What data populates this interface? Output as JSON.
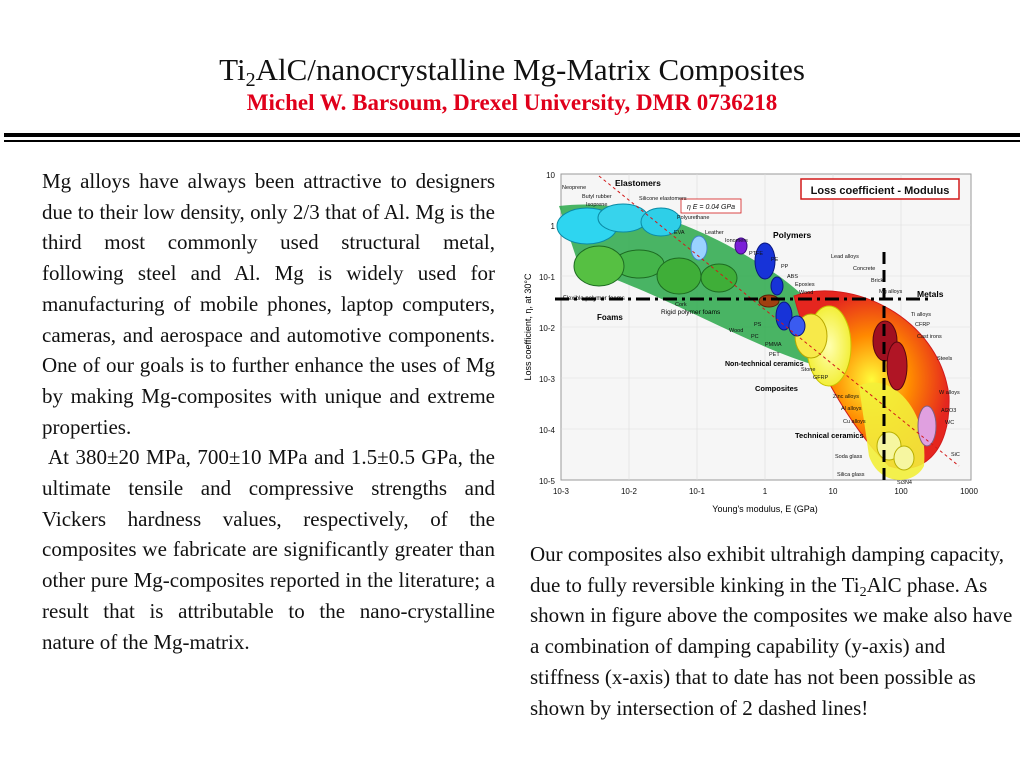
{
  "header": {
    "title_pre": "Ti",
    "title_sub": "2",
    "title_post": "AlC/nanocrystalline Mg-Matrix Composites",
    "subtitle": "Michel W. Barsoum, Drexel University, DMR  0736218",
    "subtitle_color": "#e0001b"
  },
  "left_column": {
    "para1": "Mg alloys have always been attractive to designers due to their low density, only 2/3 that of Al. Mg is the third most commonly used structural metal, following steel and Al. Mg is widely used for manufacturing of mobile phones, laptop computers, cameras, and aerospace and automotive components. One of our goals is to further enhance the uses of Mg by making Mg-composites with unique and extreme properties.",
    "para2": "At 380±20 MPa, 700±10 MPa and 1.5±0.5 GPa, the ultimate tensile and compressive strengths and Vickers hardness values, respectively, of the composites we fabricate are significantly greater than other pure Mg-composites reported in the literature; a result that is attributable to the nano-crystalline nature of the Mg-matrix."
  },
  "right_column": {
    "text_pre": "Our composites also exhibit ultrahigh damping capacity, due to fully reversible kinking in the Ti",
    "text_sub": "2",
    "text_post": "AlC phase. As shown in figure above the composites we make also have a combination of damping capability (y-axis) and stiffness (x-axis) that to date has not been possible as shown by intersection of 2 dashed lines!"
  },
  "figure": {
    "chart_title": "Loss coefficient - Modulus",
    "equation_label": "η E = 0.04 GPa",
    "xlabel": "Young's modulus, E  (GPa)",
    "ylabel": "Loss coefficient, η, at 30°C",
    "xticks": [
      "10-3",
      "10-2",
      "10-1",
      "1",
      "10",
      "100",
      "1000"
    ],
    "yticks": [
      "10",
      "1",
      "10-1",
      "10-2",
      "10-3",
      "10-4",
      "10-5"
    ],
    "class_labels": {
      "elastomers": "Elastomers",
      "polymers": "Polymers",
      "foams": "Foams",
      "metals": "Metals",
      "non_technical_ceramics": "Non-technical ceramics",
      "composites": "Composites",
      "technical_ceramics": "Technical ceramics",
      "rigid_polymer_foams": "Rigid polymer foams",
      "flexible_polymer_foams": "Flexible polymer foams"
    },
    "material_labels": {
      "neoprene": "Neoprene",
      "butyl_rubber": "Butyl rubber",
      "isoprene": "Isoprene",
      "silicone": "Silicone elastomers",
      "polyurethane": "Polyurethane",
      "eva": "EVA",
      "leather": "Leather",
      "ionomers": "Ionomers",
      "ptfe": "PTFE",
      "pe": "PE",
      "pp": "PP",
      "abs": "ABS",
      "epoxies": "Epoxies",
      "wood": "Wood",
      "wood_grain": "Wood",
      "pc": "PC",
      "pmma": "PMMA",
      "pet": "PET",
      "ps": "PS",
      "cork": "Cork",
      "stone": "Stone",
      "gfrp": "GFRP",
      "lead_alloys": "Lead alloys",
      "concrete": "Concrete",
      "brick": "Brick",
      "mg_alloys": "Mg alloys",
      "ti_alloys": "Ti alloys",
      "cfrp": "CFRP",
      "cast_irons": "Cast irons",
      "steels": "Steels",
      "zinc_alloys": "Zinc alloys",
      "al_alloys": "Al alloys",
      "cu_alloys": "Cu alloys",
      "w_alloys": "W alloys",
      "al2o3": "Al2O3",
      "wc": "WC",
      "soda_glass": "Soda glass",
      "silica_glass": "Silica glass",
      "si3n4": "Si3N4",
      "sic": "SiC"
    }
  }
}
